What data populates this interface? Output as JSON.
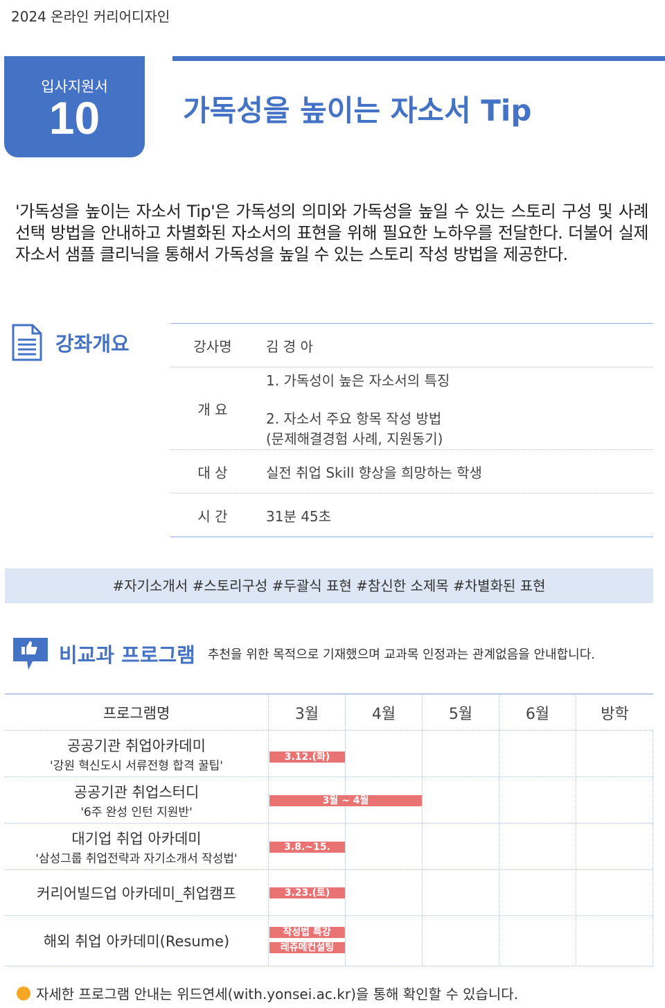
{
  "header": {
    "top_label": "2024 온라인 커리어디자인",
    "badge_label": "입사지원서",
    "badge_number": "10",
    "title": "가독성을 높이는 자소서 Tip"
  },
  "intro": "'가독성을 높이는 자소서 Tip'은 가독성의 의미와 가독성을 높일 수 있는 스토리 구성 및 사례 선택 방법을 안내하고 차별화된 자소서의 표현을 위해 필요한 노하우를 전달한다. 더불어 실제 자소서 샘플 클리닉을 통해서 가독성을 높일 수 있는 스토리 작성 방법을 제공한다.",
  "overview": {
    "title": "강좌개요",
    "icon": "document-icon",
    "rows": [
      {
        "key": "강사명",
        "values": [
          "김 경 아"
        ]
      },
      {
        "key": "개 요",
        "values": [
          "1. 가독성이 높은 자소서의 특징",
          "2. 자소서 주요 항목 작성 방법",
          "(문제해결경험 사례, 지원동기)"
        ]
      },
      {
        "key": "대 상",
        "values": [
          "실전 취업 Skill 향상을 희망하는 학생"
        ]
      },
      {
        "key": "시 간",
        "values": [
          "31분 45초"
        ]
      }
    ]
  },
  "tags": "#자기소개서 #스토리구성 #두괄식 표현 #참신한 소제목 #차별화된 표현",
  "programs": {
    "title": "비교과 프로그램",
    "icon": "thumbs-up-icon",
    "note": "추천을 위한 목적으로 기재했으며 교과목 인정과는 관계없음을 안내합니다.",
    "columns": [
      "프로그램명",
      "3월",
      "4월",
      "5월",
      "6월",
      "방학"
    ],
    "rows": [
      {
        "name": "공공기관 취업아카데미",
        "sub": "'강원 혁신도시 서류전형 합격 꿀팁'",
        "bars": [
          {
            "label": "3.12.(화)",
            "start": 0,
            "span": 1
          }
        ]
      },
      {
        "name": "공공기관 취업스터디",
        "sub": "'6주 완성 인턴 지원반'",
        "bars": [
          {
            "label": "3월 ~ 4월",
            "start": 0,
            "span": 2
          }
        ]
      },
      {
        "name": "대기업 취업 아카데미",
        "sub": "'삼성그룹 취업전략과 자기소개서 작성법'",
        "bars": [
          {
            "label": "3.8.~15.",
            "start": 0,
            "span": 1
          }
        ]
      },
      {
        "name": "커리어빌드업 아카데미_취업캠프",
        "sub": "",
        "bars": [
          {
            "label": "3.23.(토)",
            "start": 0,
            "span": 1
          }
        ]
      },
      {
        "name": "해외 취업 아카데미(Resume)",
        "sub": "",
        "bars": [
          {
            "label": "작성법 특강",
            "start": 0,
            "span": 1
          },
          {
            "label": "레쥬메컨설팅",
            "start": 0,
            "span": 1
          }
        ]
      }
    ],
    "bar_color": "#e97272"
  },
  "footer": "자세한 프로그램 안내는 위드연세(with.yonsei.ac.kr)을 통해 확인할 수 있습니다.",
  "colors": {
    "accent": "#4472c4",
    "tag_bg": "#dce6f4"
  }
}
